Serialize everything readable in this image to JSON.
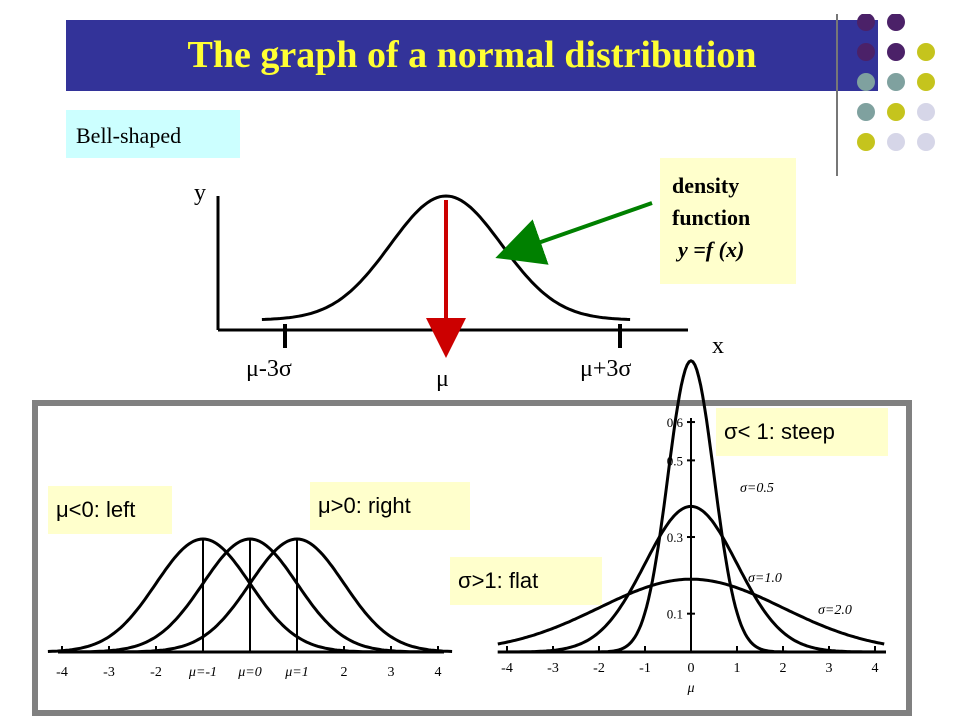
{
  "title": "The graph of a normal distribution",
  "bell_label": "Bell-shaped",
  "density_label": {
    "line1": "density",
    "line2": "function",
    "line3": "y =f (x)"
  },
  "top_axes": {
    "y_label": "y",
    "x_label": "x",
    "tick_left": "μ-3σ",
    "tick_center": "μ",
    "tick_right": "μ+3σ"
  },
  "labels": {
    "mu_left": "μ<0: left",
    "mu_right": "μ>0: right",
    "sigma_steep": "σ< 1: steep",
    "sigma_flat": "σ>1:  flat"
  },
  "left_plot": {
    "x_ticks": [
      "-4",
      "-3",
      "-2",
      "μ=-1",
      "μ=0",
      "μ=1",
      "2",
      "3",
      "4"
    ]
  },
  "right_plot": {
    "x_ticks": [
      "-4",
      "-3",
      "-2",
      "-1",
      "0",
      "1",
      "2",
      "3",
      "4"
    ],
    "mu_axis_label": "μ",
    "y_ticks": [
      "0.6",
      "0.5",
      "0.3",
      "0.1"
    ],
    "sigma_labels": [
      "σ=0.5",
      "σ=1.0",
      "σ=2.0"
    ]
  },
  "chart_data": [
    {
      "type": "line",
      "series": [
        {
          "values": []
        }
      ]
    },
    {
      "type": "line",
      "series": [
        {
          "values": []
        },
        {
          "values": []
        },
        {
          "values": []
        }
      ]
    },
    {
      "type": "line",
      "series": [
        {
          "values": []
        },
        {
          "values": []
        },
        {
          "values": []
        }
      ]
    }
  ],
  "colors": {
    "title_bg": "#333399",
    "title_fg": "#ffff33",
    "arrow_red": "#cc0000",
    "arrow_green": "#008000",
    "bell_bg": "#ccffff",
    "note_bg": "#ffffcc",
    "frame": "#808080"
  }
}
